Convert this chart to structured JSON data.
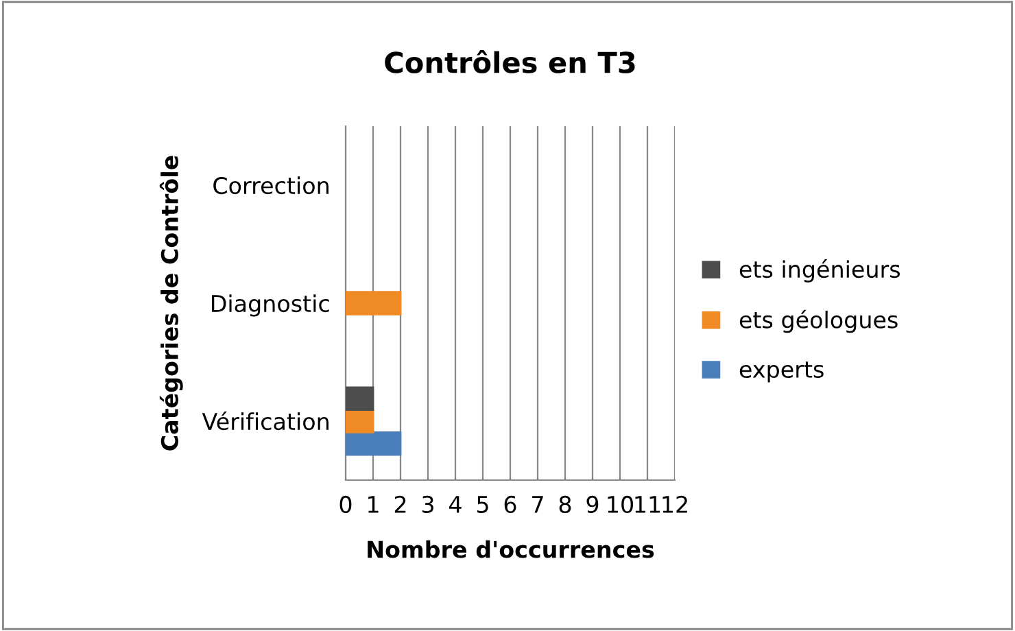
{
  "chart_data": {
    "type": "bar",
    "orientation": "horizontal",
    "title": "Contrôles en T3",
    "xlabel": "Nombre d'occurrences",
    "ylabel": "Catégories de Contrôle",
    "categories": [
      "Correction",
      "Diagnostic",
      "Vérification"
    ],
    "series": [
      {
        "name": "experts",
        "color": "#4a7ebb",
        "values": [
          null,
          null,
          2
        ]
      },
      {
        "name": "ets géologues",
        "color": "#f08a24",
        "values": [
          null,
          2,
          1
        ]
      },
      {
        "name": "ets ingénieurs",
        "color": "#4d4d4d",
        "values": [
          null,
          null,
          1
        ]
      }
    ],
    "xlim": [
      0,
      12
    ],
    "xticks": [
      0,
      1,
      2,
      3,
      4,
      5,
      6,
      7,
      8,
      9,
      10,
      11,
      12
    ],
    "grid": "x",
    "legend": "right"
  }
}
